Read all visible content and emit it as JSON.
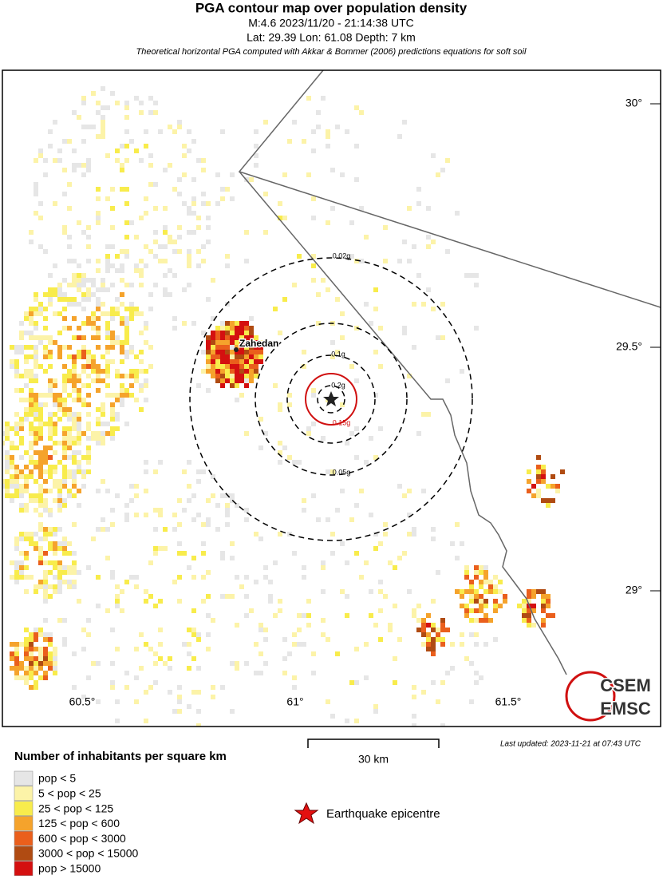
{
  "header": {
    "title": "PGA contour map over population density",
    "event": "M:4.6 2023/11/20 - 21:14:38 UTC",
    "location": "Lat: 29.39 Lon: 61.08 Depth: 7 km",
    "note": "Theoretical horizontal PGA computed with Akkar & Bommer (2006) predictions equations for soft soil"
  },
  "map": {
    "lat_labels": [
      "30°",
      "29.5°",
      "29°"
    ],
    "lon_labels": [
      "60.5°",
      "61°",
      "61.5°"
    ],
    "city": "Zahedan",
    "contours": [
      {
        "label": "0.02g"
      },
      {
        "label": "0.05g"
      },
      {
        "label": "0.1g"
      },
      {
        "label": "0.15g"
      },
      {
        "label": "0.2g"
      }
    ],
    "logo": [
      "CSEM",
      "EMSC"
    ]
  },
  "scale": "30 km",
  "updated": "Last updated: 2023-11-21 at 07:43 UTC",
  "legend": {
    "title": "Number of inhabitants per square km",
    "items": [
      {
        "label": "pop < 5",
        "color": "#e6e6e6"
      },
      {
        "label": "5 < pop < 25",
        "color": "#fcf3a8"
      },
      {
        "label": "25 < pop < 125",
        "color": "#f8ec4c"
      },
      {
        "label": "125 < pop < 600",
        "color": "#f5a32c"
      },
      {
        "label": "600 < pop < 3000",
        "color": "#ea5f1c"
      },
      {
        "label": "3000 < pop < 15000",
        "color": "#b04b12"
      },
      {
        "label": "pop > 15000",
        "color": "#d41010"
      }
    ],
    "epicentre": "Earthquake epicentre"
  }
}
